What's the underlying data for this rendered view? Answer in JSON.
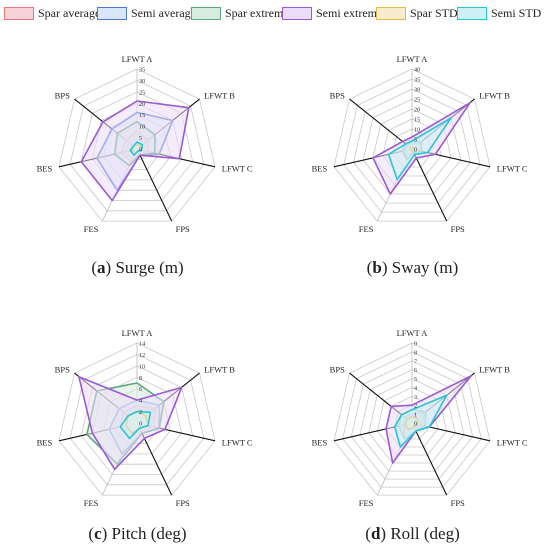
{
  "legend": {
    "items": [
      {
        "label": "Spar average",
        "color": "#e8747c",
        "fill": "#f6d3d6"
      },
      {
        "label": "Semi average",
        "color": "#4a79d8",
        "fill": "#dbe5f8"
      },
      {
        "label": "Spar extreme",
        "color": "#5aa87c",
        "fill": "#d6ecdf"
      },
      {
        "label": "Semi extreme",
        "color": "#9b59d6",
        "fill": "#ebdcf7"
      },
      {
        "label": "Spar STD",
        "color": "#e6b94a",
        "fill": "#f8eccc"
      },
      {
        "label": "Semi STD",
        "color": "#27c6d4",
        "fill": "#cdf1f4"
      }
    ]
  },
  "axes": [
    "LFWT A",
    "LFWT B",
    "LFWT C",
    "FPS",
    "FES",
    "BES",
    "BPS"
  ],
  "chart_data": [
    {
      "type": "radar",
      "caption_letter": "a",
      "caption_text": "Surge (m)",
      "rmax": 35,
      "ticks": [
        0,
        5,
        10,
        15,
        20,
        25,
        30,
        35
      ],
      "series": [
        {
          "name": "Spar average",
          "values": [
            8,
            6,
            5,
            3,
            6,
            7,
            6
          ]
        },
        {
          "name": "Semi average",
          "values": [
            16,
            20,
            10,
            3,
            20,
            18,
            14
          ]
        },
        {
          "name": "Spar extreme",
          "values": [
            12,
            10,
            8,
            3,
            8,
            10,
            11
          ]
        },
        {
          "name": "Semi extreme",
          "values": [
            21,
            29,
            19,
            3,
            25,
            25,
            19
          ]
        },
        {
          "name": "Spar STD",
          "values": [
            2,
            2,
            2,
            1,
            2,
            2,
            2
          ]
        },
        {
          "name": "Semi STD",
          "values": [
            3,
            3,
            2,
            1,
            3,
            3,
            2
          ]
        }
      ]
    },
    {
      "type": "radar",
      "caption_letter": "b",
      "caption_text": "Sway (m)",
      "rmax": 40,
      "ticks": [
        0,
        5,
        10,
        15,
        20,
        25,
        30,
        35,
        40
      ],
      "series": [
        {
          "name": "Spar average",
          "values": [
            2,
            3,
            3,
            1,
            4,
            3,
            2
          ]
        },
        {
          "name": "Semi average",
          "values": [
            3,
            5,
            4,
            2,
            5,
            4,
            3
          ]
        },
        {
          "name": "Spar extreme",
          "values": [
            4,
            6,
            5,
            2,
            6,
            5,
            4
          ]
        },
        {
          "name": "Semi extreme",
          "values": [
            6,
            37,
            12,
            5,
            25,
            20,
            6
          ]
        },
        {
          "name": "Spar STD",
          "values": [
            1,
            1,
            1,
            1,
            1,
            1,
            1
          ]
        },
        {
          "name": "Semi STD",
          "values": [
            4,
            25,
            8,
            3,
            17,
            12,
            4
          ]
        }
      ]
    },
    {
      "type": "radar",
      "caption_letter": "c",
      "caption_text": "Pitch (deg)",
      "rmax": 14,
      "ticks": [
        0,
        2,
        4,
        6,
        8,
        10,
        12,
        14
      ],
      "series": [
        {
          "name": "Spar average",
          "values": [
            3,
            4,
            3,
            1,
            3,
            3,
            3
          ]
        },
        {
          "name": "Semi average",
          "values": [
            4,
            5,
            4,
            2,
            6,
            5,
            4
          ]
        },
        {
          "name": "Spar extreme",
          "values": [
            7,
            6,
            4,
            2,
            8,
            9,
            9
          ]
        },
        {
          "name": "Semi extreme",
          "values": [
            4,
            10,
            5,
            3,
            9,
            8,
            13
          ]
        },
        {
          "name": "Spar STD",
          "values": [
            2,
            2,
            2,
            1,
            2,
            2,
            2
          ]
        },
        {
          "name": "Semi STD",
          "values": [
            2,
            3,
            2,
            1,
            3,
            3,
            2
          ]
        }
      ]
    },
    {
      "type": "radar",
      "caption_letter": "d",
      "caption_text": "Roll (deg)",
      "rmax": 9,
      "ticks": [
        0,
        1,
        2,
        3,
        4,
        5,
        6,
        7,
        8,
        9
      ],
      "series": [
        {
          "name": "Spar average",
          "values": [
            1,
            1,
            1,
            0.5,
            1,
            1,
            1
          ]
        },
        {
          "name": "Semi average",
          "values": [
            1,
            2,
            1,
            1,
            2,
            1,
            1
          ]
        },
        {
          "name": "Spar extreme",
          "values": [
            1.5,
            2,
            1.5,
            1,
            2,
            1.5,
            1.5
          ]
        },
        {
          "name": "Semi extreme",
          "values": [
            2,
            8.5,
            2,
            1,
            5,
            3,
            3
          ]
        },
        {
          "name": "Spar STD",
          "values": [
            0.7,
            0.8,
            0.7,
            0.5,
            0.8,
            0.8,
            0.7
          ]
        },
        {
          "name": "Semi STD",
          "values": [
            1.5,
            5,
            2,
            1,
            3,
            2,
            1.5
          ]
        }
      ]
    }
  ]
}
